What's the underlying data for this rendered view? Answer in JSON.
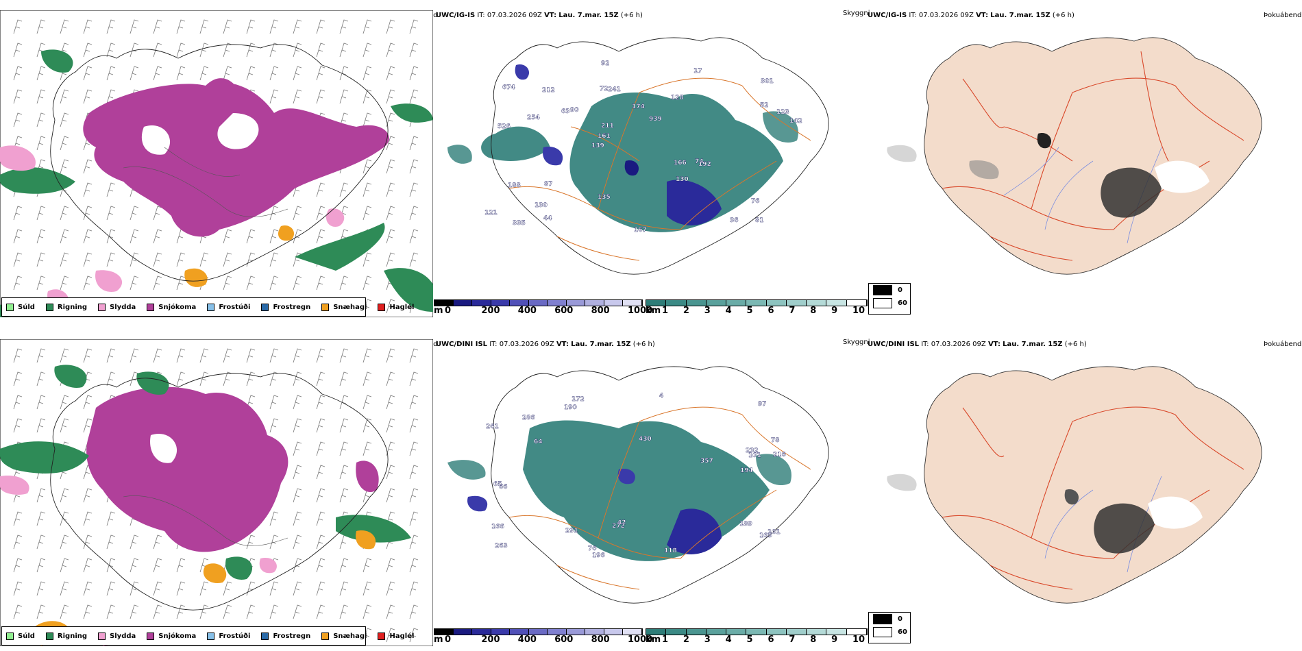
{
  "rows": [
    {
      "model": "UWC/IG-IS",
      "it_label": "IT:",
      "it_value": "07.03.2026 09Z",
      "vt_label": "VT:",
      "vt_value": "Lau. 7.mar. 15Z",
      "lead": "(+6 h)"
    },
    {
      "model": "UWC/DINI ISL",
      "it_label": "IT:",
      "it_value": "07.03.2026 09Z",
      "vt_label": "VT:",
      "vt_value": "Lau. 7.mar. 15Z",
      "lead": "(+6 h)"
    }
  ],
  "panel_titles": {
    "precip_type": "Úrkomutegund",
    "visibility": "Skyggni",
    "fog": "Þokuábendi"
  },
  "precip_legend": [
    {
      "label": "Súld",
      "color": "#90ee90"
    },
    {
      "label": "Rigning",
      "color": "#2e8b57"
    },
    {
      "label": "Slydda",
      "color": "#f0a0d0"
    },
    {
      "label": "Snjókoma",
      "color": "#b0409a"
    },
    {
      "label": "Frostúði",
      "color": "#87c0e8"
    },
    {
      "label": "Frostregn",
      "color": "#2a6aa8"
    },
    {
      "label": "Snæhagl",
      "color": "#f0a020"
    },
    {
      "label": "Haglél",
      "color": "#e02020"
    }
  ],
  "height_scale": {
    "unit": "m",
    "ticks": [
      "0",
      "200",
      "400",
      "600",
      "800",
      "1000"
    ],
    "colors": [
      "#000000",
      "#1a1a80",
      "#2a2a9a",
      "#3a3aaa",
      "#5050b8",
      "#6a6ac4",
      "#8080d0",
      "#9a9ad8",
      "#b0b0e0",
      "#c8c8ec",
      "#e0e0f4"
    ]
  },
  "visibility_scale": {
    "unit": "km",
    "ticks": [
      "1",
      "2",
      "3",
      "4",
      "5",
      "6",
      "7",
      "8",
      "9",
      "10"
    ],
    "colors": [
      "#2e7d78",
      "#3b8a85",
      "#4a9590",
      "#5aa19c",
      "#6aaca7",
      "#7bb8b3",
      "#8dc3bf",
      "#a0cecb",
      "#b4dad7",
      "#c8e5e3",
      "#ffffff"
    ]
  },
  "fog_legend": [
    {
      "label": "0",
      "color": "#000000"
    },
    {
      "label": "60",
      "color": "#ffffff"
    }
  ],
  "visibility_labels_top": [
    "81",
    "526",
    "301",
    "139",
    "128",
    "335",
    "72",
    "174",
    "188",
    "90",
    "121",
    "130",
    "241",
    "939",
    "192",
    "674",
    "92",
    "142",
    "166",
    "52",
    "161",
    "135",
    "211",
    "212",
    "17",
    "87",
    "36",
    "76",
    "74",
    "167",
    "63",
    "254",
    "130",
    "44",
    "123"
  ],
  "visibility_labels_bottom": [
    "189",
    "78",
    "101",
    "430",
    "263",
    "172",
    "232",
    "291",
    "97",
    "64",
    "216",
    "261",
    "194",
    "196",
    "166",
    "286",
    "165",
    "190",
    "42",
    "101",
    "65",
    "66",
    "118",
    "357",
    "76",
    "272",
    "4"
  ]
}
